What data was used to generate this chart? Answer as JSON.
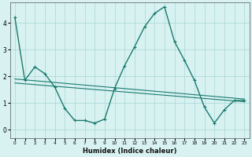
{
  "xlabel": "Humidex (Indice chaleur)",
  "bg_color": "#d8f2f2",
  "line_color": "#1a7a6e",
  "grid_color": "#a8d4d4",
  "x_values": [
    0,
    1,
    2,
    3,
    4,
    5,
    6,
    7,
    8,
    9,
    10,
    11,
    12,
    13,
    14,
    15,
    16,
    17,
    18,
    19,
    20,
    21,
    22,
    23
  ],
  "y_main": [
    4.2,
    1.85,
    2.35,
    2.1,
    1.6,
    0.8,
    0.35,
    0.35,
    0.25,
    0.4,
    1.55,
    2.4,
    3.1,
    3.85,
    4.35,
    4.6,
    3.3,
    2.6,
    1.85,
    0.85,
    0.25,
    0.75,
    1.1,
    1.1
  ],
  "y_upper_start": 1.9,
  "y_upper_end": 1.15,
  "y_lower_start": 1.75,
  "y_lower_end": 1.05,
  "ylim": [
    -0.3,
    4.75
  ],
  "xlim": [
    -0.5,
    23.5
  ],
  "yticks": [
    0,
    1,
    2,
    3,
    4
  ],
  "xticks": [
    0,
    1,
    2,
    3,
    4,
    5,
    6,
    7,
    8,
    9,
    10,
    11,
    12,
    13,
    14,
    15,
    16,
    17,
    18,
    19,
    20,
    21,
    22,
    23
  ]
}
